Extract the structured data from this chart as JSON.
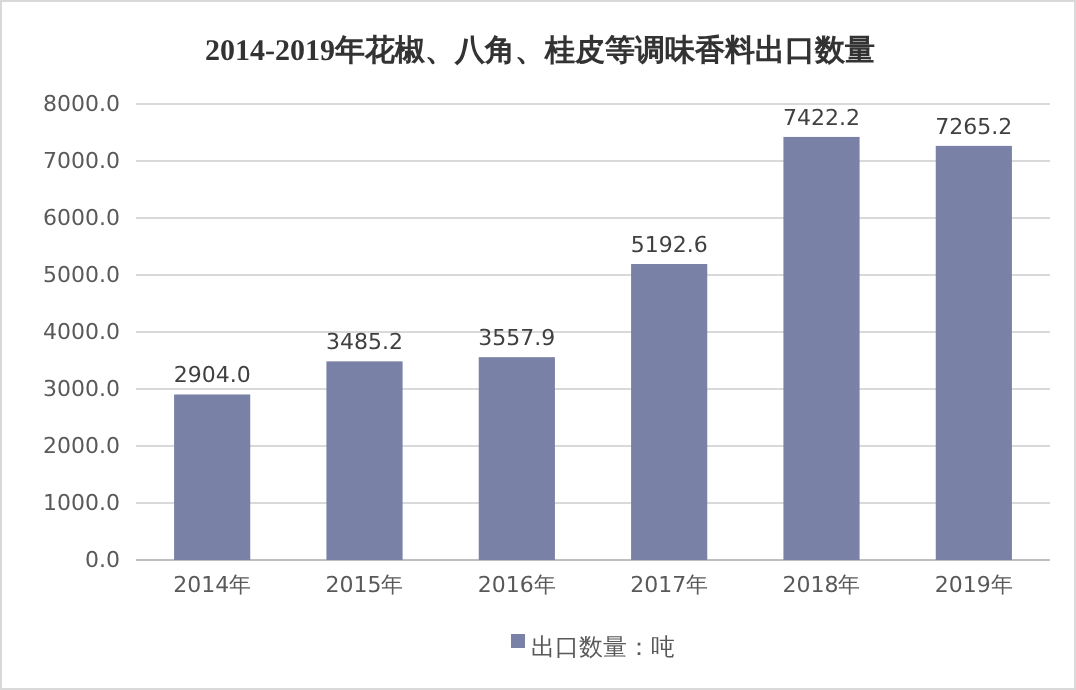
{
  "chart_data": {
    "type": "bar",
    "title": "2014-2019年花椒、八角、桂皮等调味香料出口数量",
    "categories": [
      "2014年",
      "2015年",
      "2016年",
      "2017年",
      "2018年",
      "2019年"
    ],
    "series": [
      {
        "name": "出口数量：吨",
        "color": "#7a81a6",
        "values": [
          2904,
          3485.2,
          3557.9,
          5192.6,
          7422.2,
          7265.2
        ],
        "value_labels": [
          "2904.0",
          "3485.2",
          "3557.9",
          "5192.6",
          "7422.2",
          "7265.2"
        ]
      }
    ],
    "ylim": [
      0,
      8000
    ],
    "yticks": [
      {
        "value": 0,
        "label": "0.0"
      },
      {
        "value": 1000,
        "label": "1000.0"
      },
      {
        "value": 2000,
        "label": "2000.0"
      },
      {
        "value": 3000,
        "label": "3000.0"
      },
      {
        "value": 4000,
        "label": "4000.0"
      },
      {
        "value": 5000,
        "label": "5000.0"
      },
      {
        "value": 6000,
        "label": "6000.0"
      },
      {
        "value": 7000,
        "label": "7000.0"
      },
      {
        "value": 8000,
        "label": "8000.0"
      }
    ],
    "grid": "y",
    "legend": "bottom"
  }
}
